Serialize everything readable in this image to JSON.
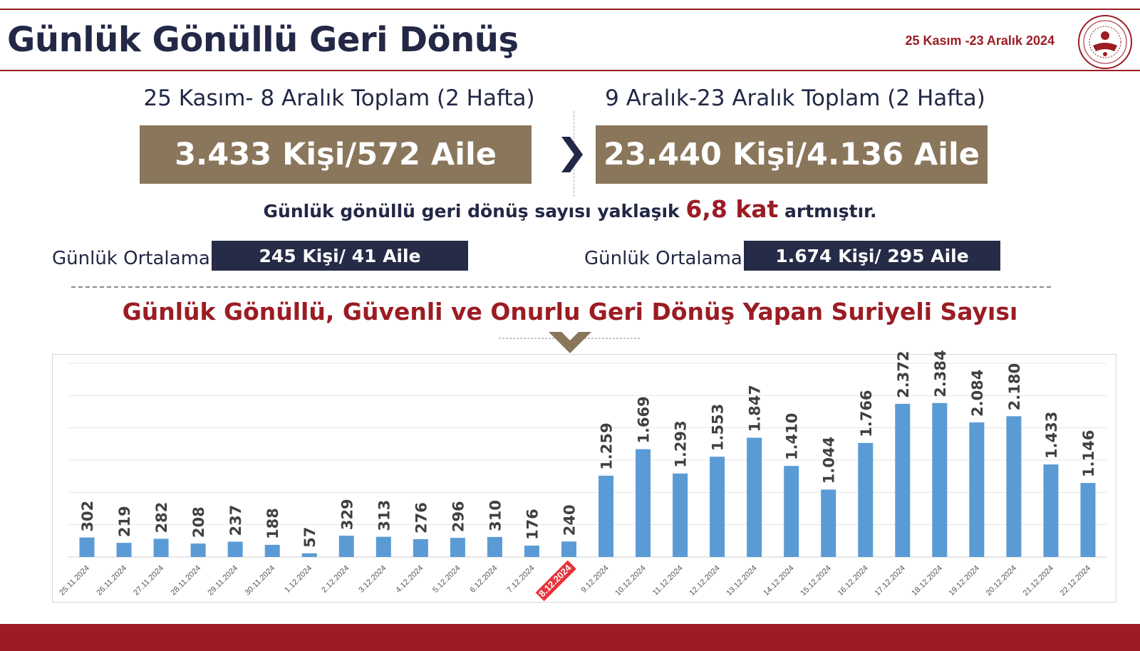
{
  "header": {
    "title": "Günlük Gönüllü Geri Dönüş",
    "date_range": "25 Kasım -23 Aralık 2024"
  },
  "colors": {
    "accent_red": "#9b1c23",
    "navy": "#222845",
    "brown_box": "#8a765b",
    "bar_blue": "#5b9bd5"
  },
  "summary": {
    "left": {
      "label": "25 Kasım- 8 Aralık Toplam (2 Hafta)",
      "total": "3.433 Kişi/572 Aile",
      "avg_label": "Günlük Ortalama",
      "avg_value": "245 Kişi/ 41 Aile"
    },
    "right": {
      "label": "9 Aralık-23 Aralık Toplam (2 Hafta)",
      "total": "23.440 Kişi/4.136 Aile",
      "avg_label": "Günlük Ortalama",
      "avg_value": "1.674  Kişi/ 295 Aile"
    },
    "increase_pre": "Günlük gönüllü geri dönüş sayısı yaklaşık ",
    "increase_value": "6,8 kat",
    "increase_post": " artmıştır."
  },
  "chart_data": {
    "type": "bar",
    "title": "Günlük Gönüllü, Güvenli ve Onurlu Geri Dönüş Yapan Suriyeli Sayısı",
    "xlabel": "",
    "ylabel": "",
    "ylim": [
      0,
      3000
    ],
    "grid": true,
    "highlight_category": "8.12.2024",
    "highlight_color": "#e8323a",
    "categories": [
      "25.11.2024",
      "26.11.2024",
      "27.11.2024",
      "28.11.2024",
      "29.11.2024",
      "30.11.2024",
      "1.12.2024",
      "2.12.2024",
      "3.12.2024",
      "4.12.2024",
      "5.12.2024",
      "6.12.2024",
      "7.12.2024",
      "8.12.2024",
      "9.12.2024",
      "10.12.2024",
      "11.12.2024",
      "12.12.2024",
      "13.12.2024",
      "14.12.2024",
      "15.12.2024",
      "16.12.2024",
      "17.12.2024",
      "18.12.2024",
      "19.12.2024",
      "20.12.2024",
      "21.12.2024",
      "22.12.2024"
    ],
    "values": [
      302,
      219,
      282,
      208,
      237,
      188,
      57,
      329,
      313,
      276,
      296,
      310,
      176,
      240,
      1259,
      1669,
      1293,
      1553,
      1847,
      1410,
      1044,
      1766,
      2372,
      2384,
      2084,
      2180,
      1433,
      1146
    ],
    "value_labels": [
      "302",
      "219",
      "282",
      "208",
      "237",
      "188",
      "57",
      "329",
      "313",
      "276",
      "296",
      "310",
      "176",
      "240",
      "1.259",
      "1.669",
      "1.293",
      "1.553",
      "1.847",
      "1.410",
      "1.044",
      "1.766",
      "2.372",
      "2.384",
      "2.084",
      "2.180",
      "1.433",
      "1.146"
    ]
  }
}
